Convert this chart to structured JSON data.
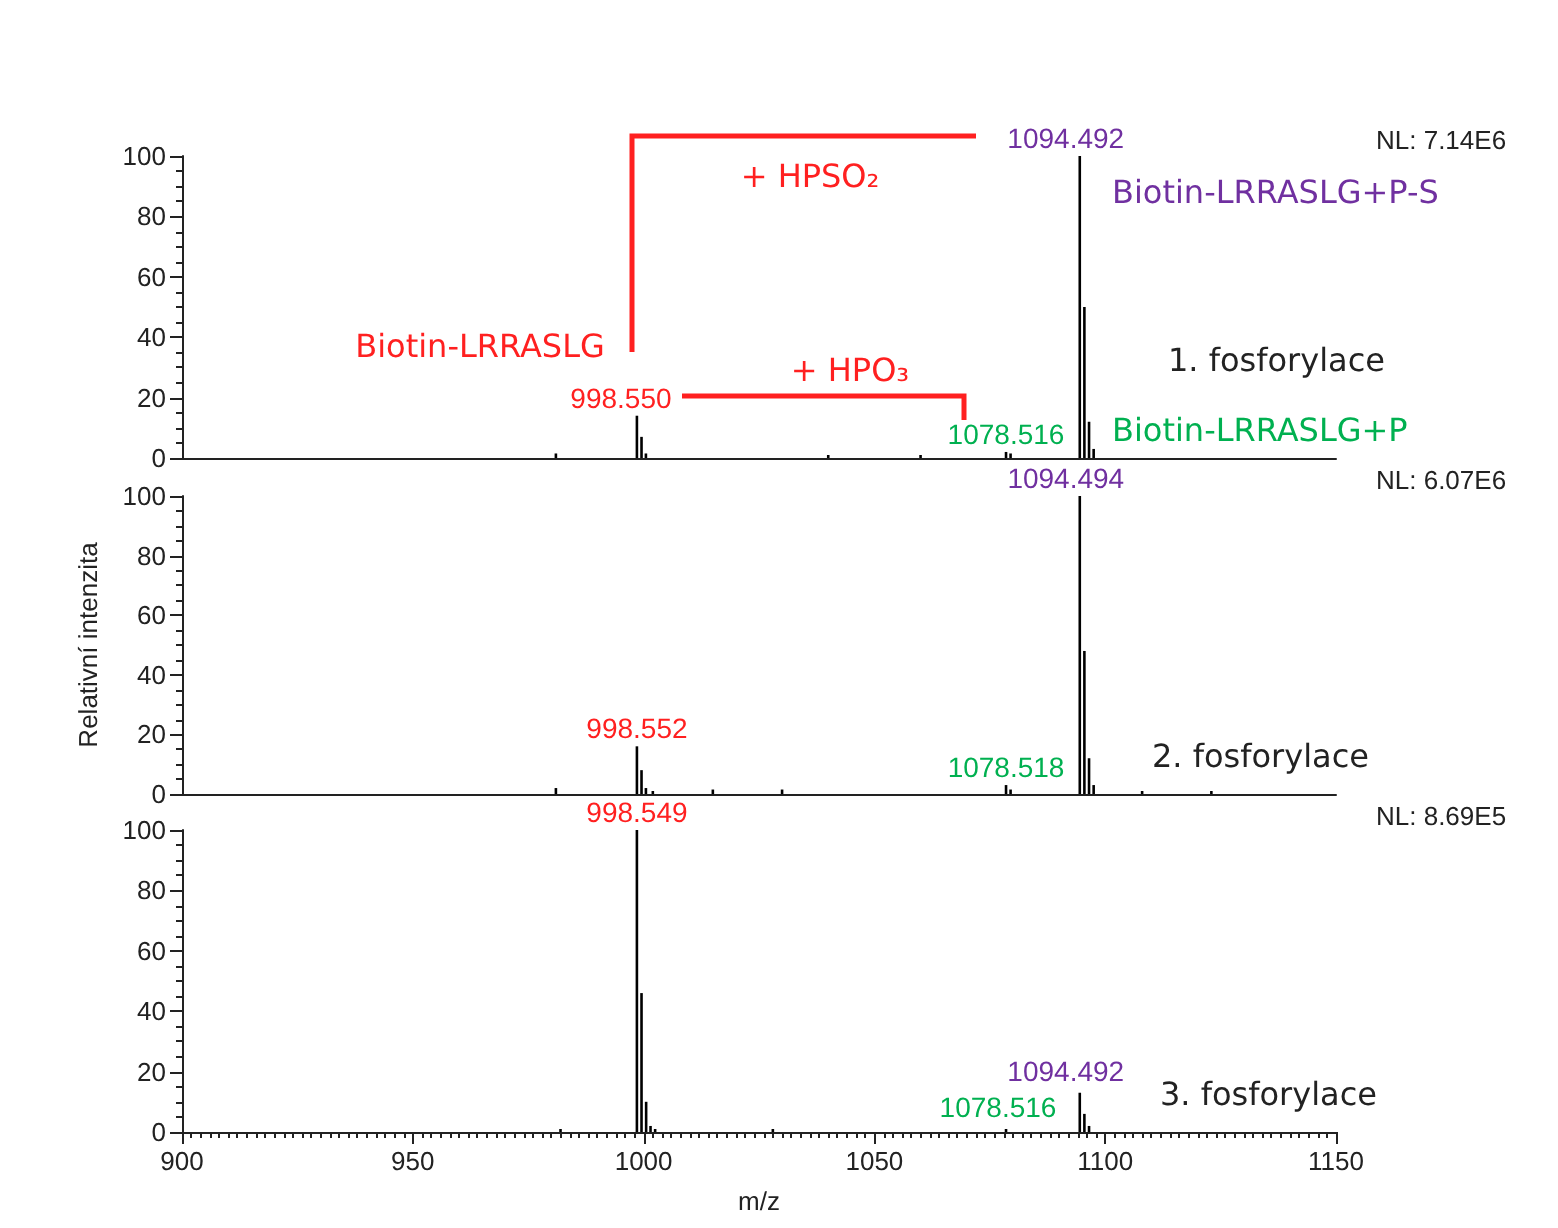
{
  "chart_data": [
    {
      "type": "bar",
      "color": "#000000",
      "xlim": [
        900,
        1150
      ],
      "xticks": [
        900,
        950,
        1000,
        1050,
        1100,
        1150
      ],
      "ylim": [
        0,
        100
      ],
      "yticks": [
        0,
        20,
        40,
        60,
        80,
        100
      ],
      "tick_labels": "y",
      "x": [
        981,
        998.55,
        999.55,
        1000.5,
        1040,
        1060,
        1078.516,
        1079.5,
        1094.492,
        1095.49,
        1096.5,
        1097.5
      ],
      "values": [
        1.5,
        14,
        7,
        1.5,
        1,
        1,
        2,
        1.5,
        100,
        50,
        12,
        3
      ],
      "annotations": [
        {
          "text": "998.550",
          "x": 998.55,
          "y": 14
        },
        {
          "text": "1078.516",
          "x": 1078.516,
          "y": 2
        },
        {
          "text": "1094.492",
          "x": 1094.492,
          "y": 100
        },
        "Biotin-LRRASLG",
        "+ HPSO₂",
        "+ HPO₃",
        "Biotin-LRRASLG+P-S",
        "Biotin-LRRASLG+P",
        "1. fosforylace",
        "NL: 7.14E6"
      ]
    },
    {
      "type": "bar",
      "color": "#000000",
      "xlim": [
        900,
        1150
      ],
      "xticks": [
        900,
        950,
        1000,
        1050,
        1100,
        1150
      ],
      "ylim": [
        0,
        100
      ],
      "yticks": [
        0,
        20,
        40,
        60,
        80,
        100
      ],
      "tick_labels": "y",
      "ylabel": "Relativní intenzita",
      "x": [
        981,
        998.552,
        999.55,
        1000.5,
        1002,
        1015,
        1030,
        1078.518,
        1079.5,
        1094.494,
        1095.49,
        1096.5,
        1097.5,
        1108,
        1123
      ],
      "values": [
        2,
        16,
        8,
        2,
        1,
        1.5,
        1.5,
        3,
        1.5,
        100,
        48,
        12,
        3,
        1,
        1
      ],
      "annotations": [
        {
          "text": "998.552",
          "x": 998.552,
          "y": 16
        },
        {
          "text": "1078.518",
          "x": 1078.518,
          "y": 3
        },
        {
          "text": "1094.494",
          "x": 1094.494,
          "y": 100
        },
        "2. fosforylace",
        "NL: 6.07E6"
      ]
    },
    {
      "type": "bar",
      "color": "#000000",
      "xlim": [
        900,
        1150
      ],
      "xticks": [
        900,
        950,
        1000,
        1050,
        1100,
        1150
      ],
      "ylim": [
        0,
        100
      ],
      "yticks": [
        0,
        20,
        40,
        60,
        80,
        100
      ],
      "xlabel": "m/z",
      "x": [
        982,
        998.549,
        999.55,
        1000.55,
        1001.5,
        1002.5,
        1028,
        1078.516,
        1094.492,
        1095.49,
        1096.5
      ],
      "values": [
        1,
        100,
        46,
        10,
        2,
        1,
        1,
        1,
        13,
        6,
        2
      ],
      "annotations": [
        {
          "text": "998.549",
          "x": 998.549,
          "y": 100
        },
        {
          "text": "1094.492",
          "x": 1094.492,
          "y": 13
        },
        {
          "text": "1078.516",
          "x": 1078.516,
          "y": 1
        },
        "3. fosforylace",
        "NL: 8.69E5"
      ]
    }
  ]
}
